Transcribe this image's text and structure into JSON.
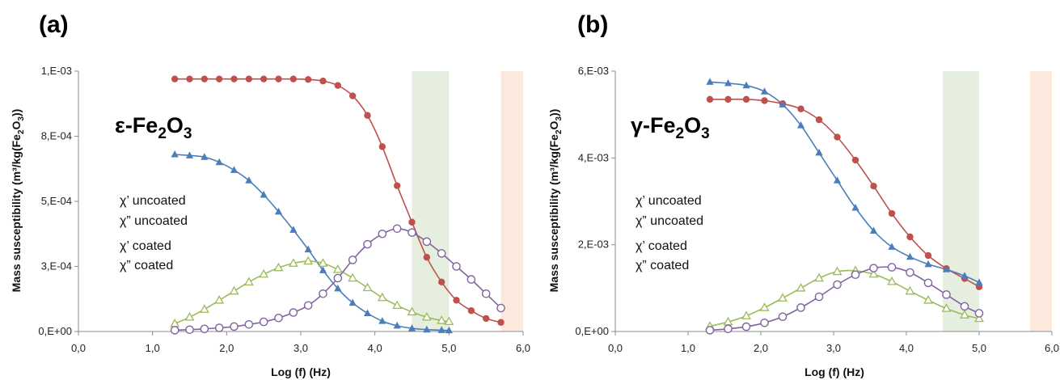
{
  "panels": [
    {
      "panel_label": "(a)",
      "formula": {
        "prefix": "ε-Fe",
        "sub1": "2",
        "mid": "O",
        "sub2": "3"
      },
      "legend": [
        "χ’ uncoated",
        "χ” uncoated",
        "χ’ coated",
        "χ” coated"
      ],
      "ylabel": {
        "main": "Mass susceptibility (m³/kg(Fe",
        "sub1": "2",
        "mid": "O",
        "sub2": "3",
        "end": "))"
      },
      "xlabel": "Log (f) (Hz)"
    },
    {
      "panel_label": "(b)",
      "formula": {
        "prefix": "γ-Fe",
        "sub1": "2",
        "mid": "O",
        "sub2": "3"
      },
      "legend": [
        "χ’ uncoated",
        "χ” uncoated",
        "χ’ coated",
        "χ” coated"
      ],
      "ylabel": {
        "main": "Mass susceptibility (m³/kg(Fe",
        "sub1": "2",
        "mid": "O",
        "sub2": "3",
        "end": "))"
      },
      "xlabel": "Log (f) (Hz)"
    }
  ],
  "chart_data": [
    {
      "type": "scatter",
      "title": "",
      "xlabel": "Log (f) (Hz)",
      "ylabel": "Mass susceptibility (m³/kg(Fe2O3))",
      "xlim": [
        0,
        6
      ],
      "ylim": [
        0,
        0.001
      ],
      "xticks": [
        "0,0",
        "1,0",
        "2,0",
        "3,0",
        "4,0",
        "5,0",
        "6,0"
      ],
      "yticks": [
        "0,E+00",
        "3,E-04",
        "5,E-04",
        "8,E-04",
        "1,E-03"
      ],
      "ytick_values": [
        0,
        0.00025,
        0.0005,
        0.00075,
        0.001
      ],
      "shaded_bands": [
        {
          "x0": 4.5,
          "x1": 5.0,
          "color": "#e6efdf"
        },
        {
          "x0": 5.7,
          "x1": 6.0,
          "color": "#fbe9dd"
        }
      ],
      "series": [
        {
          "marker": "circle-filled",
          "color": "#c0504d",
          "x": [
            1.3,
            1.5,
            1.7,
            1.9,
            2.1,
            2.3,
            2.5,
            2.7,
            2.9,
            3.1,
            3.3,
            3.5,
            3.7,
            3.9,
            4.1,
            4.3,
            4.5,
            4.7,
            4.9,
            5.1,
            5.3,
            5.5,
            5.7
          ],
          "y": [
            0.00097,
            0.00097,
            0.00097,
            0.00097,
            0.00097,
            0.00097,
            0.00097,
            0.00097,
            0.00097,
            0.000968,
            0.000962,
            0.000945,
            0.000905,
            0.00083,
            0.00071,
            0.00056,
            0.00042,
            0.000285,
            0.00019,
            0.00012,
            8e-05,
            5e-05,
            3.5e-05
          ]
        },
        {
          "marker": "triangle-filled",
          "color": "#4a7ebb",
          "x": [
            1.3,
            1.5,
            1.7,
            1.9,
            2.1,
            2.3,
            2.5,
            2.7,
            2.9,
            3.1,
            3.3,
            3.5,
            3.7,
            3.9,
            4.1,
            4.3,
            4.5,
            4.7,
            4.9,
            5.0
          ],
          "y": [
            0.00068,
            0.000676,
            0.00067,
            0.00065,
            0.00062,
            0.00058,
            0.000525,
            0.00046,
            0.00039,
            0.000315,
            0.000235,
            0.000165,
            0.00011,
            7e-05,
            4e-05,
            2.2e-05,
            1.2e-05,
            7e-06,
            5e-06,
            4e-06
          ]
        },
        {
          "marker": "triangle-open",
          "color": "#9bbb59",
          "x": [
            1.3,
            1.5,
            1.7,
            1.9,
            2.1,
            2.3,
            2.5,
            2.7,
            2.9,
            3.1,
            3.3,
            3.5,
            3.7,
            3.9,
            4.1,
            4.3,
            4.5,
            4.7,
            4.9,
            5.0
          ],
          "y": [
            3e-05,
            5.5e-05,
            8.5e-05,
            0.00012,
            0.000155,
            0.00019,
            0.00022,
            0.000245,
            0.000262,
            0.00027,
            0.000262,
            0.000238,
            0.000205,
            0.000168,
            0.00013,
            0.0001,
            7.5e-05,
            5.5e-05,
            4.2e-05,
            3.8e-05
          ]
        },
        {
          "marker": "circle-open",
          "color": "#8064a2",
          "x": [
            1.3,
            1.5,
            1.7,
            1.9,
            2.1,
            2.3,
            2.5,
            2.7,
            2.9,
            3.1,
            3.3,
            3.5,
            3.7,
            3.9,
            4.1,
            4.3,
            4.5,
            4.7,
            4.9,
            5.1,
            5.3,
            5.5,
            5.7
          ],
          "y": [
            5e-06,
            7e-06,
            1e-05,
            1.4e-05,
            1.9e-05,
            2.7e-05,
            3.7e-05,
            5.2e-05,
            7.3e-05,
            0.0001,
            0.000145,
            0.000205,
            0.000275,
            0.000335,
            0.000375,
            0.000395,
            0.00038,
            0.000345,
            0.0003,
            0.00025,
            0.0002,
            0.000145,
            9e-05
          ]
        }
      ]
    },
    {
      "type": "scatter",
      "title": "",
      "xlabel": "Log (f) (Hz)",
      "ylabel": "Mass susceptibility (m³/kg(Fe2O3))",
      "xlim": [
        0,
        6
      ],
      "ylim": [
        0,
        0.006
      ],
      "xticks": [
        "0,0",
        "1,0",
        "2,0",
        "3,0",
        "4,0",
        "5,0",
        "6,0"
      ],
      "yticks": [
        "0,E+00",
        "2,E-03",
        "4,E-03",
        "6,E-03"
      ],
      "ytick_values": [
        0,
        0.002,
        0.004,
        0.006
      ],
      "shaded_bands": [
        {
          "x0": 4.5,
          "x1": 5.0,
          "color": "#e6efdf"
        },
        {
          "x0": 5.7,
          "x1": 6.0,
          "color": "#fbe9dd"
        }
      ],
      "series": [
        {
          "marker": "circle-filled",
          "color": "#c0504d",
          "x": [
            1.3,
            1.55,
            1.8,
            2.05,
            2.3,
            2.55,
            2.8,
            3.05,
            3.3,
            3.55,
            3.8,
            4.05,
            4.3,
            4.55,
            4.8,
            5.0
          ],
          "y": [
            0.00535,
            0.00535,
            0.00535,
            0.00532,
            0.00525,
            0.00513,
            0.00488,
            0.00448,
            0.00395,
            0.00335,
            0.00272,
            0.00218,
            0.00175,
            0.00145,
            0.00122,
            0.00103
          ]
        },
        {
          "marker": "triangle-filled",
          "color": "#4a7ebb",
          "x": [
            1.3,
            1.55,
            1.8,
            2.05,
            2.3,
            2.55,
            2.8,
            3.05,
            3.3,
            3.55,
            3.8,
            4.05,
            4.3,
            4.55,
            4.8,
            5.0
          ],
          "y": [
            0.00575,
            0.00572,
            0.00567,
            0.00553,
            0.00523,
            0.00475,
            0.00412,
            0.00348,
            0.00285,
            0.00232,
            0.00195,
            0.00172,
            0.00155,
            0.00143,
            0.00128,
            0.00113
          ]
        },
        {
          "marker": "triangle-open",
          "color": "#9bbb59",
          "x": [
            1.3,
            1.55,
            1.8,
            2.05,
            2.3,
            2.55,
            2.8,
            3.05,
            3.3,
            3.55,
            3.8,
            4.05,
            4.3,
            4.55,
            4.8,
            5.0
          ],
          "y": [
            0.00012,
            0.00022,
            0.00036,
            0.00055,
            0.00077,
            0.001,
            0.00123,
            0.00138,
            0.0014,
            0.00132,
            0.00115,
            0.00093,
            0.00072,
            0.00053,
            0.00038,
            0.0003
          ]
        },
        {
          "marker": "circle-open",
          "color": "#8064a2",
          "x": [
            1.3,
            1.55,
            1.8,
            2.05,
            2.3,
            2.55,
            2.8,
            3.05,
            3.3,
            3.55,
            3.8,
            4.05,
            4.3,
            4.55,
            4.8,
            5.0
          ],
          "y": [
            3e-05,
            6e-05,
            0.00011,
            0.0002,
            0.00034,
            0.00055,
            0.0008,
            0.00108,
            0.00131,
            0.00146,
            0.00148,
            0.00136,
            0.00112,
            0.00085,
            0.00058,
            0.00042
          ]
        }
      ]
    }
  ]
}
